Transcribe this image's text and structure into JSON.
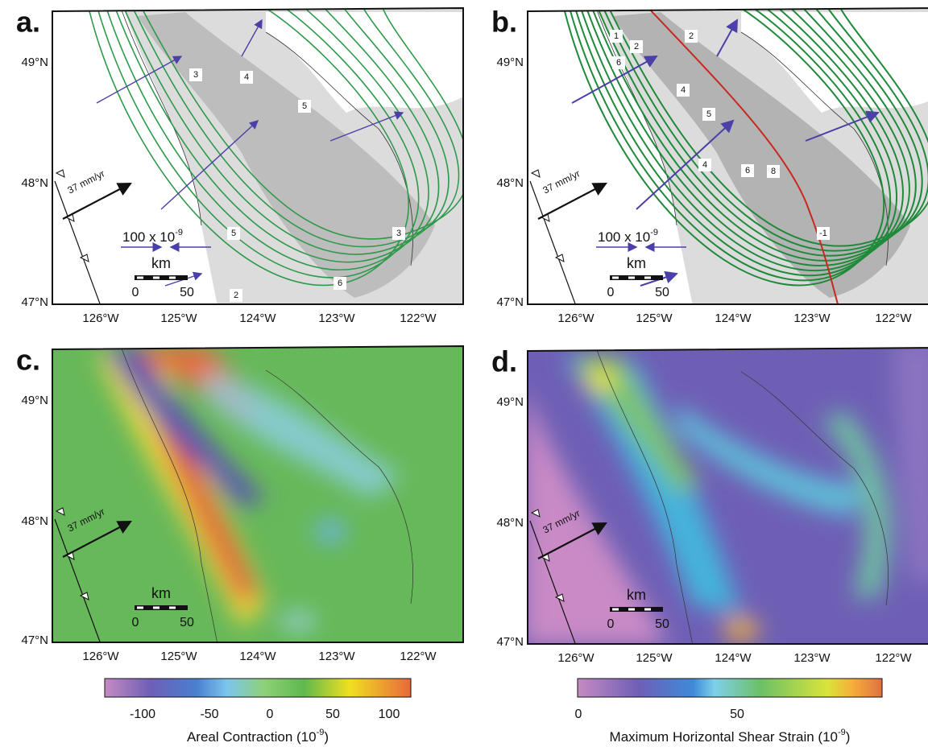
{
  "panels": [
    {
      "label": "a.",
      "lat_labels": [
        "49°N",
        "48°N",
        "47°N"
      ],
      "lon_labels": [
        "126°W",
        "125°W",
        "124°W",
        "123°W",
        "122°W"
      ],
      "velocity_label": "37 mm/yr",
      "strain_scale": {
        "text": "100 x 10",
        "exponent": "-9"
      },
      "scale_bar": {
        "unit": "km",
        "ticks": [
          "0",
          "50"
        ]
      },
      "contour_labels": [
        "3",
        "4",
        "5",
        "5",
        "6",
        "3",
        "2"
      ]
    },
    {
      "label": "b.",
      "lat_labels": [
        "49°N",
        "48°N",
        "47°N"
      ],
      "lon_labels": [
        "126°W",
        "125°W",
        "124°W",
        "123°W",
        "122°W"
      ],
      "velocity_label": "37 mm/yr",
      "strain_scale": {
        "text": "100 x 10",
        "exponent": "-9"
      },
      "scale_bar": {
        "unit": "km",
        "ticks": [
          "0",
          "50"
        ]
      },
      "contour_labels": [
        "1",
        "2",
        "6",
        "2",
        "4",
        "5",
        "4",
        "6",
        "8",
        "-1"
      ]
    },
    {
      "label": "c.",
      "lat_labels": [
        "49°N",
        "48°N",
        "47°N"
      ],
      "lon_labels": [
        "126°W",
        "125°W",
        "124°W",
        "123°W",
        "122°W"
      ],
      "velocity_label": "37 mm/yr",
      "scale_bar": {
        "unit": "km",
        "ticks": [
          "0",
          "50"
        ]
      }
    },
    {
      "label": "d.",
      "lat_labels": [
        "49°N",
        "48°N",
        "47°N"
      ],
      "lon_labels": [
        "126°W",
        "125°W",
        "124°W",
        "123°W",
        "122°W"
      ],
      "velocity_label": "37 mm/yr",
      "scale_bar": {
        "unit": "km",
        "ticks": [
          "0",
          "50"
        ]
      }
    }
  ],
  "colorbars": [
    {
      "ticks": [
        "-100",
        "-50",
        "0",
        "50",
        "100"
      ],
      "label": "Areal Contraction (10",
      "exponent": "-9",
      "suffix": ")"
    },
    {
      "ticks": [
        "0",
        "50"
      ],
      "label": "Maximum Horizontal Shear Strain (10",
      "exponent": "-9",
      "suffix": ")"
    }
  ]
}
